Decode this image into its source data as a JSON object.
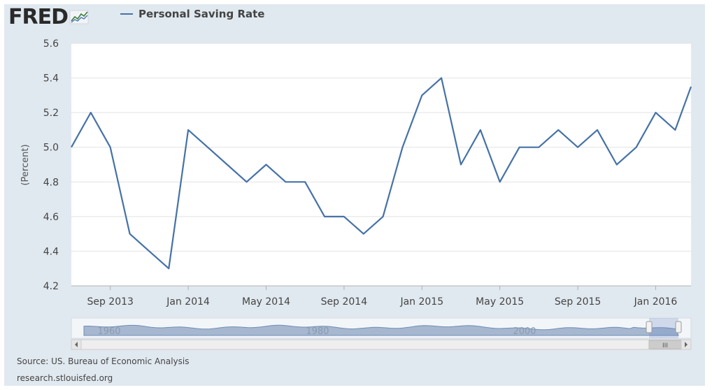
{
  "logo": {
    "text": "FRED"
  },
  "legend": {
    "label": "Personal Saving Rate"
  },
  "source": {
    "text": "Source: US. Bureau of Economic Analysis"
  },
  "site": {
    "text": "research.stlouisfed.org"
  },
  "colors": {
    "series": "#4572a7",
    "frame": "#e1e9f0",
    "navigator_fill": "#a6b7cf"
  },
  "navigator": {
    "labels": [
      "1960",
      "1980",
      "2000"
    ],
    "scroll_thumb": "III"
  },
  "chart_data": {
    "type": "line",
    "title": "",
    "ylabel": "(Percent)",
    "xlabel": "",
    "ylim": [
      4.2,
      5.6
    ],
    "yticks": [
      4.2,
      4.4,
      4.6,
      4.8,
      5.0,
      5.2,
      5.4,
      5.6
    ],
    "grid": true,
    "legend_position": "top-left",
    "xtick_labels": [
      "Sep 2013",
      "Jan 2014",
      "May 2014",
      "Sep 2014",
      "Jan 2015",
      "May 2015",
      "Sep 2015",
      "Jan 2016"
    ],
    "series": [
      {
        "name": "Personal Saving Rate",
        "x": [
          "2013-07",
          "2013-08",
          "2013-09",
          "2013-10",
          "2013-11",
          "2013-12",
          "2014-01",
          "2014-02",
          "2014-03",
          "2014-04",
          "2014-05",
          "2014-06",
          "2014-07",
          "2014-08",
          "2014-09",
          "2014-10",
          "2014-11",
          "2014-12",
          "2015-01",
          "2015-02",
          "2015-03",
          "2015-04",
          "2015-05",
          "2015-06",
          "2015-07",
          "2015-08",
          "2015-09",
          "2015-10",
          "2015-11",
          "2015-12",
          "2016-01",
          "2016-02",
          "2016-03"
        ],
        "values": [
          5.0,
          5.2,
          5.0,
          4.5,
          4.4,
          4.3,
          5.1,
          5.0,
          4.9,
          4.8,
          4.9,
          4.8,
          4.8,
          4.6,
          4.6,
          4.5,
          4.6,
          5.0,
          5.3,
          5.4,
          4.9,
          5.1,
          4.8,
          5.0,
          5.0,
          5.1,
          5.0,
          5.1,
          4.9,
          5.0,
          5.2,
          5.1,
          5.35
        ]
      }
    ]
  }
}
